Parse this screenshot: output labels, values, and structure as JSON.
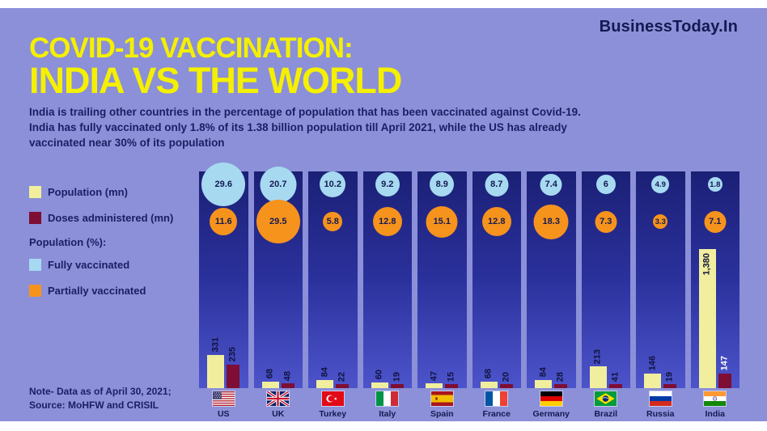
{
  "brand": "BusinessToday.In",
  "title": {
    "line1": "COVID-19 VACCINATION:",
    "line2": "INDIA VS THE WORLD"
  },
  "subtitle_lines": [
    "India is trailing other countries in the percentage of population that has been vaccinated against Covid-19.",
    "India has fully vaccinated only 1.8% of its 1.38 billion population till April 2021, while the US has already",
    "vaccinated near 30% of its population"
  ],
  "legend": {
    "population_label": "Population (mn)",
    "doses_label": "Doses administered (mn)",
    "population_pct_label": "Population (%):",
    "fully_label": "Fully vaccinated",
    "partially_label": "Partially vaccinated"
  },
  "note_lines": [
    "Note- Data as of April 30, 2021;",
    "Source: MoHFW and CRISIL"
  ],
  "colors": {
    "background": "#8b90d8",
    "title_yellow": "#f4f000",
    "navy_text": "#1a1f63",
    "fully_blue": "#a7d9f1",
    "partially_orange": "#f6931d",
    "population_yellow": "#f1ef9e",
    "doses_maroon": "#7e0e33"
  },
  "chart_data": {
    "type": "bar",
    "title": "COVID-19 VACCINATION: INDIA VS THE WORLD",
    "categories": [
      "US",
      "UK",
      "Turkey",
      "Italy",
      "Spain",
      "France",
      "Germany",
      "Brazil",
      "Russia",
      "India"
    ],
    "series": [
      {
        "name": "Fully vaccinated (% of population)",
        "values": [
          29.6,
          20.7,
          10.2,
          9.2,
          8.9,
          8.7,
          7.4,
          6,
          4.9,
          1.8
        ],
        "labels": [
          "29.6",
          "20.7",
          "10.2",
          "9.2",
          "8.9",
          "8.7",
          "7.4",
          "6",
          "4.9",
          "1.8"
        ]
      },
      {
        "name": "Partially vaccinated (% of population)",
        "values": [
          11.6,
          29.5,
          5.8,
          12.8,
          15.1,
          12.8,
          18.3,
          7.3,
          3.3,
          7.1
        ],
        "labels": [
          "11.6",
          "29.5",
          "5.8",
          "12.8",
          "15.1",
          "12.8",
          "18.3",
          "7.3",
          "3.3",
          "7.1"
        ]
      },
      {
        "name": "Population (mn)",
        "values": [
          331,
          68,
          84,
          60,
          47,
          68,
          84,
          213,
          146,
          1380
        ],
        "labels": [
          "331",
          "68",
          "84",
          "60",
          "47",
          "68",
          "84",
          "213",
          "146",
          "1,380"
        ]
      },
      {
        "name": "Doses administered (mn)",
        "values": [
          235,
          48,
          22,
          19,
          15,
          20,
          28,
          41,
          19,
          147
        ],
        "labels": [
          "235",
          "48",
          "22",
          "19",
          "15",
          "20",
          "28",
          "41",
          "19",
          "147"
        ]
      }
    ],
    "legend_position": "left",
    "grid": false
  }
}
